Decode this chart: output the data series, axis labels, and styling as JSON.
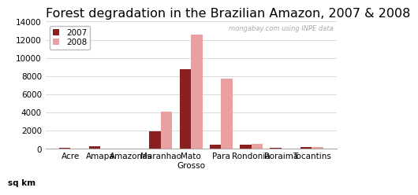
{
  "title": "Forest degradation in the Brazilian Amazon, 2007 & 2008",
  "categories": [
    "Acre",
    "Amapa",
    "Amazonas",
    "Maranhao",
    "Mato\nGrosso",
    "Para",
    "Rondonia",
    "Roraima",
    "Tocantins"
  ],
  "values_2007": [
    150,
    280,
    0,
    1900,
    8800,
    450,
    450,
    130,
    200
  ],
  "values_2008": [
    0,
    0,
    0,
    4100,
    12600,
    7750,
    550,
    0,
    200
  ],
  "color_2007": "#8B2020",
  "color_2008": "#E8A0A0",
  "ylim": [
    0,
    14000
  ],
  "yticks": [
    0,
    2000,
    4000,
    6000,
    8000,
    10000,
    12000,
    14000
  ],
  "legend_labels": [
    "2007",
    "2008"
  ],
  "watermark": "mongabay.com using INPE data",
  "background_color": "#FFFFFF",
  "title_fontsize": 11.5,
  "tick_fontsize": 7.5,
  "bar_width": 0.38,
  "ylabel": "sq km"
}
